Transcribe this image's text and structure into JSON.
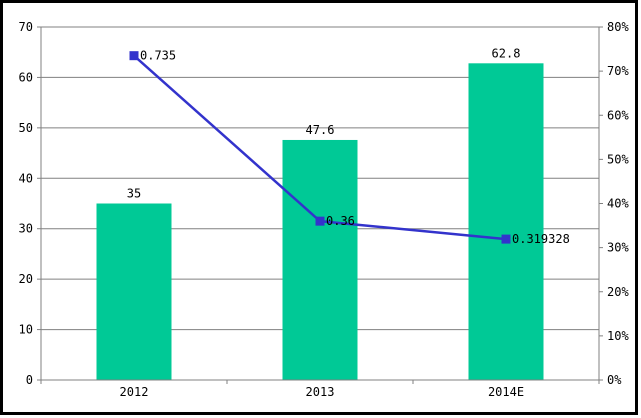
{
  "chart_data": {
    "type": "combo",
    "categories": [
      "2012",
      "2013",
      "2014E"
    ],
    "series": [
      {
        "name": "bar-series",
        "kind": "bar",
        "axis": "left",
        "values": [
          35,
          47.6,
          62.8
        ],
        "labels": [
          "35",
          "47.6",
          "62.8"
        ],
        "color": "#00C996"
      },
      {
        "name": "line-series",
        "kind": "line",
        "axis": "right",
        "values": [
          0.735,
          0.36,
          0.319328
        ],
        "labels": [
          "0.735",
          "0.36",
          "0.319328"
        ],
        "color": "#3333CC",
        "marker": "square"
      }
    ],
    "left_axis": {
      "min": 0,
      "max": 70,
      "step": 10,
      "tick_labels": [
        "0",
        "10",
        "20",
        "30",
        "40",
        "50",
        "60",
        "70"
      ]
    },
    "right_axis": {
      "min": 0,
      "max": 0.8,
      "step": 0.1,
      "tick_labels": [
        "0%",
        "10%",
        "20%",
        "30%",
        "40%",
        "50%",
        "60%",
        "70%",
        "80%"
      ]
    },
    "title": "",
    "xlabel": "",
    "ylabel": "",
    "grid": true,
    "legend": "none",
    "colors": {
      "grid": "#808080",
      "axis": "#808080",
      "text": "#000000",
      "background": "#FFFFFF",
      "frame": "#000000"
    }
  }
}
